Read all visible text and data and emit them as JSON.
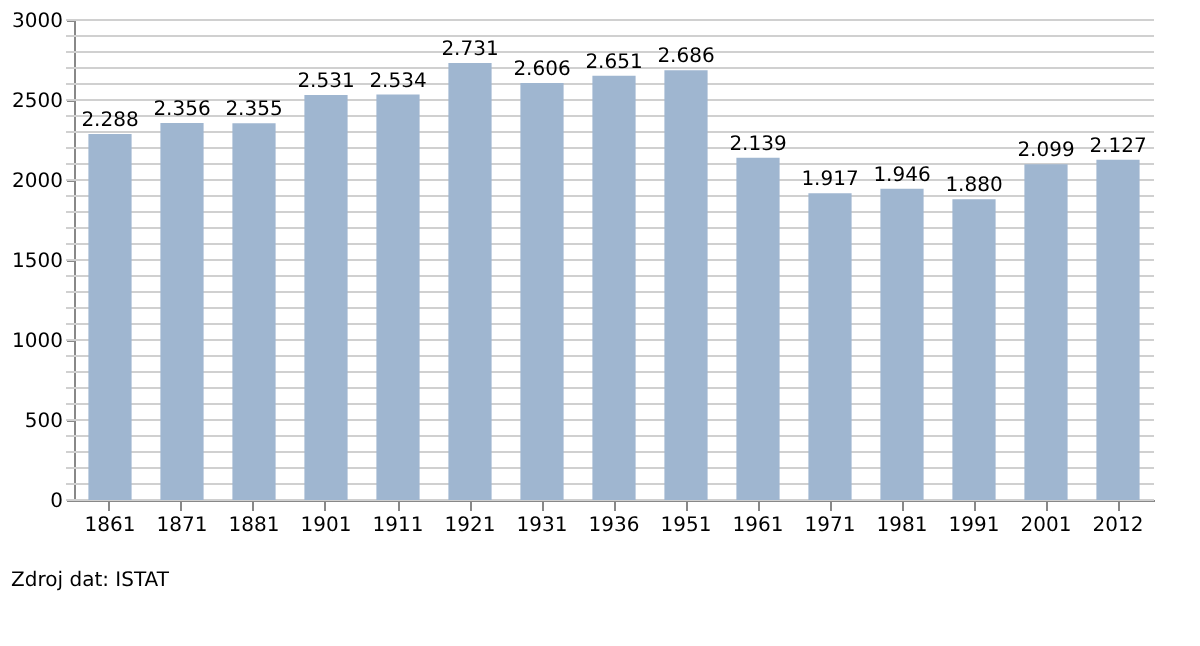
{
  "chart_data": {
    "type": "bar",
    "categories": [
      "1861",
      "1871",
      "1881",
      "1901",
      "1911",
      "1921",
      "1931",
      "1936",
      "1951",
      "1961",
      "1971",
      "1981",
      "1991",
      "2001",
      "2012"
    ],
    "values": [
      2288,
      2356,
      2355,
      2531,
      2534,
      2731,
      2606,
      2651,
      2686,
      2139,
      1917,
      1946,
      1880,
      2099,
      2127
    ],
    "value_labels": [
      "2.288",
      "2.356",
      "2.355",
      "2.531",
      "2.534",
      "2.731",
      "2.606",
      "2.651",
      "2.686",
      "2.139",
      "1.917",
      "1.946",
      "1.880",
      "2.099",
      "2.127"
    ],
    "color": "#9fb6d0",
    "ylim": [
      0,
      3000
    ],
    "yticks": [
      0,
      {
        "value": 100,
        "label": null
      },
      {
        "value": 200,
        "label": null
      },
      {
        "value": 300,
        "label": null
      },
      {
        "value": 400,
        "label": null
      },
      500,
      {
        "value": 600,
        "label": null
      },
      {
        "value": 700,
        "label": null
      },
      {
        "value": 800,
        "label": null
      },
      {
        "value": 900,
        "label": null
      },
      1000,
      {
        "value": 1100,
        "label": null
      },
      {
        "value": 1200,
        "label": null
      },
      {
        "value": 1300,
        "label": null
      },
      {
        "value": 1400,
        "label": null
      },
      1500,
      {
        "value": 1600,
        "label": null
      },
      {
        "value": 1700,
        "label": null
      },
      {
        "value": 1800,
        "label": null
      },
      {
        "value": 1900,
        "label": null
      },
      2000,
      {
        "value": 2100,
        "label": null
      },
      {
        "value": 2200,
        "label": null
      },
      {
        "value": 2300,
        "label": null
      },
      {
        "value": 2400,
        "label": null
      },
      2500,
      {
        "value": 2600,
        "label": null
      },
      {
        "value": 2700,
        "label": null
      },
      {
        "value": 2800,
        "label": null
      },
      {
        "value": 2900,
        "label": null
      },
      3000
    ],
    "grid": true,
    "annotations": [
      "Zdroj dat: ISTAT"
    ]
  }
}
